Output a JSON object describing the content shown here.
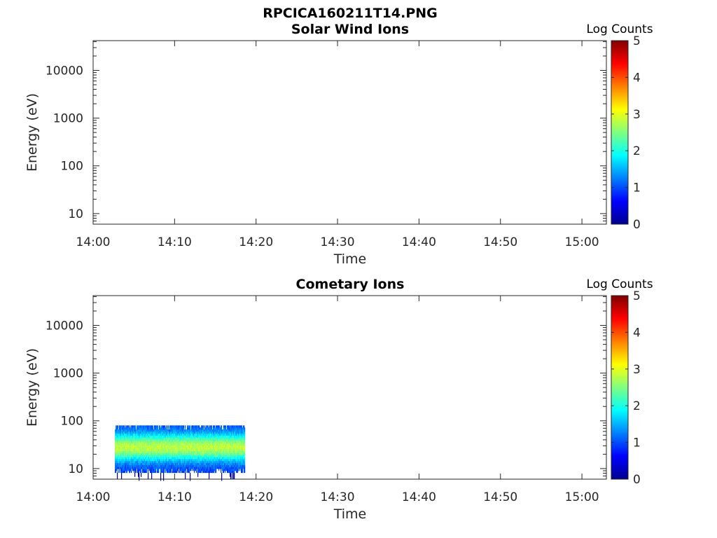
{
  "figure_title": "RPCICA160211T14.PNG",
  "colormap": "jet",
  "chart_data": [
    {
      "type": "heatmap",
      "title": "Solar Wind Ions",
      "xlabel": "Time",
      "ylabel": "Energy (eV)",
      "x_ticks": [
        "14:00",
        "14:10",
        "14:20",
        "14:30",
        "14:40",
        "14:50",
        "15:00"
      ],
      "y_ticks": [
        "10",
        "100",
        "1000",
        "10000"
      ],
      "y_scale": "log",
      "xlim": [
        "14:00",
        "15:03"
      ],
      "ylim": [
        6,
        42000
      ],
      "colorbar": {
        "label": "Log Counts",
        "ticks": [
          "0",
          "1",
          "2",
          "3",
          "4",
          "5"
        ],
        "range": [
          0,
          5
        ]
      },
      "data": []
    },
    {
      "type": "heatmap",
      "title": "Cometary Ions",
      "xlabel": "Time",
      "ylabel": "Energy (eV)",
      "x_ticks": [
        "14:00",
        "14:10",
        "14:20",
        "14:30",
        "14:40",
        "14:50",
        "15:00"
      ],
      "y_ticks": [
        "10",
        "100",
        "1000",
        "10000"
      ],
      "y_scale": "log",
      "xlim": [
        "14:00",
        "15:03"
      ],
      "ylim": [
        6,
        42000
      ],
      "colorbar": {
        "label": "Log Counts",
        "ticks": [
          "0",
          "1",
          "2",
          "3",
          "4",
          "5"
        ],
        "range": [
          0,
          5
        ]
      },
      "data": [
        {
          "time_range": [
            "14:02:40",
            "14:18:40"
          ],
          "energy_range_eV": [
            10,
            80
          ],
          "peak_log_counts": 2.8,
          "peak_energy_eV": 27,
          "typical_log_counts": 1.0
        }
      ]
    }
  ]
}
